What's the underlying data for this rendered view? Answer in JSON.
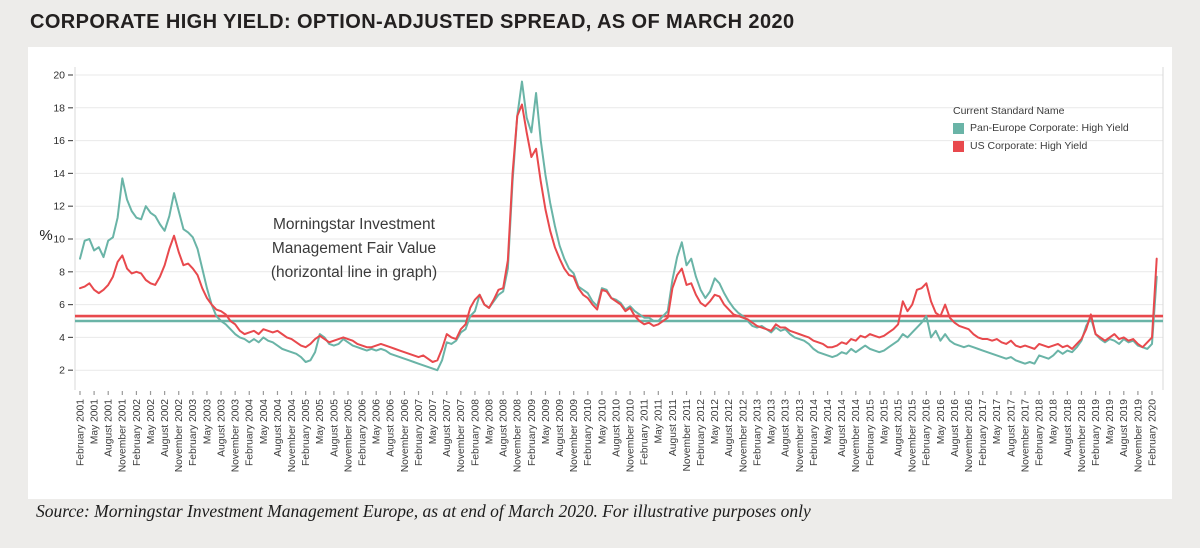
{
  "page": {
    "title": "CORPORATE HIGH YIELD: OPTION-ADJUSTED SPREAD, AS OF MARCH 2020",
    "source": "Source: Morningstar Investment Management Europe, as at end of March 2020. For illustrative purposes only"
  },
  "chart": {
    "y_axis_label": "%",
    "annotation": {
      "line1": "Morningstar Investment",
      "line2": "Management Fair Value",
      "line3": "(horizontal line in graph)"
    },
    "legend": {
      "title": "Current Standard Name",
      "items": [
        {
          "label": "Pan-Europe Corporate: High Yield",
          "color": "#6ab4a7"
        },
        {
          "label": "US Corporate: High Yield",
          "color": "#e8494d"
        }
      ]
    }
  },
  "chart_data": {
    "type": "line",
    "title": "Corporate High Yield: Option-Adjusted Spread, as of March 2020",
    "ylabel": "%",
    "ylim": [
      0.8,
      20.5
    ],
    "y_ticks": [
      2,
      4,
      6,
      8,
      10,
      12,
      14,
      16,
      18,
      20
    ],
    "grid": "horizontal",
    "legend_position": "inside-top-right",
    "x_frequency": "monthly",
    "x_start": "2001-02",
    "x_end": "2020-03",
    "x_tick_every_months": 3,
    "x_tick_labels": [
      "February 2001",
      "May 2001",
      "August 2001",
      "November 2001",
      "February 2002",
      "May 2002",
      "August 2002",
      "November 2002",
      "February 2003",
      "May 2003",
      "August 2003",
      "November 2003",
      "February 2004",
      "May 2004",
      "August 2004",
      "November 2004",
      "February 2005",
      "May 2005",
      "August 2005",
      "November 2005",
      "February 2006",
      "May 2006",
      "August 2006",
      "November 2006",
      "February 2007",
      "May 2007",
      "August 2007",
      "November 2007",
      "February 2008",
      "May 2008",
      "August 2008",
      "November 2008",
      "February 2009",
      "May 2009",
      "August 2009",
      "November 2009",
      "February 2010",
      "May 2010",
      "August 2010",
      "November 2010",
      "February 2011",
      "May 2011",
      "August 2011",
      "November 2011",
      "February 2012",
      "May 2012",
      "August 2012",
      "November 2012",
      "February 2013",
      "May 2013",
      "August 2013",
      "November 2013",
      "February 2014",
      "May 2014",
      "August 2014",
      "November 2014",
      "February 2015",
      "May 2015",
      "August 2015",
      "November 2015",
      "February 2016",
      "May 2016",
      "August 2016",
      "November 2016",
      "February 2017",
      "May 2017",
      "August 2017",
      "November 2017",
      "February 2018",
      "May 2018",
      "August 2018",
      "November 2018",
      "February 2019",
      "May 2019",
      "August 2019",
      "November 2019",
      "February 2020"
    ],
    "reference_lines": [
      {
        "name": "Morningstar Investment Management Fair Value (US Corporate: High Yield)",
        "value": 5.3,
        "color": "#e8494d"
      },
      {
        "name": "Morningstar Investment Management Fair Value (Pan-Europe Corporate: High Yield)",
        "value": 5.0,
        "color": "#6ab4a7"
      }
    ],
    "series": [
      {
        "name": "Pan-Europe Corporate: High Yield",
        "color": "#6ab4a7",
        "values": [
          8.8,
          9.9,
          10.0,
          9.3,
          9.5,
          8.9,
          9.9,
          10.1,
          11.3,
          13.7,
          12.4,
          11.7,
          11.3,
          11.2,
          12.0,
          11.6,
          11.4,
          10.9,
          10.5,
          11.4,
          12.8,
          11.7,
          10.6,
          10.4,
          10.1,
          9.4,
          8.2,
          7.0,
          6.0,
          5.3,
          5.0,
          4.8,
          4.5,
          4.2,
          4.0,
          3.9,
          3.7,
          3.9,
          3.7,
          4.0,
          3.8,
          3.7,
          3.5,
          3.3,
          3.2,
          3.1,
          3.0,
          2.8,
          2.5,
          2.6,
          3.1,
          4.2,
          4.0,
          3.6,
          3.5,
          3.6,
          3.9,
          3.7,
          3.5,
          3.4,
          3.3,
          3.2,
          3.3,
          3.2,
          3.3,
          3.2,
          3.0,
          2.9,
          2.8,
          2.7,
          2.6,
          2.5,
          2.4,
          2.3,
          2.2,
          2.1,
          2.0,
          2.6,
          3.7,
          3.6,
          3.8,
          4.3,
          4.5,
          5.3,
          5.6,
          6.6,
          6.0,
          5.8,
          6.2,
          6.6,
          6.8,
          8.2,
          13.5,
          17.5,
          19.6,
          17.4,
          16.5,
          18.9,
          16.0,
          13.9,
          12.2,
          10.8,
          9.6,
          8.8,
          8.2,
          7.9,
          7.1,
          6.9,
          6.7,
          6.2,
          5.9,
          7.0,
          6.9,
          6.4,
          6.3,
          6.1,
          5.7,
          5.9,
          5.6,
          5.4,
          5.2,
          5.2,
          5.0,
          5.0,
          5.3,
          5.6,
          7.5,
          8.9,
          9.8,
          8.4,
          8.8,
          7.7,
          6.9,
          6.4,
          6.8,
          7.6,
          7.3,
          6.7,
          6.2,
          5.8,
          5.5,
          5.3,
          5.0,
          4.7,
          4.6,
          4.7,
          4.5,
          4.3,
          4.6,
          4.4,
          4.5,
          4.2,
          4.0,
          3.9,
          3.8,
          3.6,
          3.3,
          3.1,
          3.0,
          2.9,
          2.8,
          2.9,
          3.1,
          3.0,
          3.3,
          3.1,
          3.3,
          3.5,
          3.3,
          3.2,
          3.1,
          3.2,
          3.4,
          3.6,
          3.8,
          4.2,
          4.0,
          4.3,
          4.6,
          4.9,
          5.3,
          4.0,
          4.4,
          3.8,
          4.2,
          3.8,
          3.6,
          3.5,
          3.4,
          3.5,
          3.4,
          3.3,
          3.2,
          3.1,
          3.0,
          2.9,
          2.8,
          2.7,
          2.8,
          2.6,
          2.5,
          2.4,
          2.5,
          2.4,
          2.9,
          2.8,
          2.7,
          2.9,
          3.2,
          3.0,
          3.2,
          3.1,
          3.4,
          3.8,
          4.7,
          5.2,
          4.2,
          3.9,
          3.7,
          3.9,
          3.8,
          3.6,
          3.9,
          3.7,
          3.8,
          3.5,
          3.4,
          3.3,
          3.6,
          7.7
        ]
      },
      {
        "name": "US Corporate: High Yield",
        "color": "#e8494d",
        "values": [
          7.0,
          7.1,
          7.3,
          6.9,
          6.7,
          6.9,
          7.2,
          7.7,
          8.6,
          9.0,
          8.2,
          7.9,
          8.0,
          7.9,
          7.5,
          7.3,
          7.2,
          7.7,
          8.4,
          9.4,
          10.2,
          9.2,
          8.4,
          8.5,
          8.2,
          7.8,
          7.0,
          6.4,
          6.0,
          5.7,
          5.6,
          5.4,
          5.0,
          4.8,
          4.4,
          4.2,
          4.3,
          4.4,
          4.2,
          4.5,
          4.4,
          4.3,
          4.4,
          4.2,
          4.0,
          3.9,
          3.7,
          3.5,
          3.4,
          3.6,
          3.9,
          4.1,
          3.9,
          3.7,
          3.8,
          3.9,
          4.0,
          3.9,
          3.8,
          3.6,
          3.5,
          3.4,
          3.4,
          3.5,
          3.6,
          3.5,
          3.4,
          3.3,
          3.2,
          3.1,
          3.0,
          2.9,
          2.8,
          2.9,
          2.7,
          2.5,
          2.6,
          3.3,
          4.2,
          4.0,
          3.9,
          4.5,
          4.8,
          5.8,
          6.3,
          6.6,
          6.0,
          5.8,
          6.3,
          6.9,
          7.0,
          8.7,
          14.0,
          17.5,
          18.2,
          16.5,
          15.0,
          15.5,
          13.5,
          11.8,
          10.5,
          9.5,
          8.8,
          8.2,
          7.8,
          7.7,
          7.0,
          6.6,
          6.4,
          6.0,
          5.7,
          6.9,
          6.8,
          6.4,
          6.2,
          6.0,
          5.6,
          5.8,
          5.3,
          5.0,
          4.8,
          4.9,
          4.7,
          4.8,
          5.0,
          5.2,
          7.0,
          7.8,
          8.2,
          7.2,
          7.3,
          6.6,
          6.1,
          5.9,
          6.2,
          6.6,
          6.5,
          6.0,
          5.7,
          5.4,
          5.3,
          5.2,
          5.1,
          4.9,
          4.7,
          4.6,
          4.5,
          4.4,
          4.8,
          4.6,
          4.6,
          4.4,
          4.3,
          4.2,
          4.1,
          4.0,
          3.8,
          3.7,
          3.6,
          3.4,
          3.4,
          3.5,
          3.7,
          3.6,
          3.9,
          3.8,
          4.1,
          4.0,
          4.2,
          4.1,
          4.0,
          4.1,
          4.3,
          4.5,
          4.8,
          6.2,
          5.6,
          6.0,
          6.9,
          7.0,
          7.3,
          6.2,
          5.5,
          5.3,
          6.0,
          5.2,
          4.9,
          4.7,
          4.6,
          4.5,
          4.2,
          4.0,
          3.9,
          3.9,
          3.8,
          3.9,
          3.7,
          3.6,
          3.8,
          3.5,
          3.4,
          3.5,
          3.4,
          3.3,
          3.6,
          3.5,
          3.4,
          3.5,
          3.6,
          3.4,
          3.5,
          3.3,
          3.6,
          3.9,
          4.5,
          5.4,
          4.2,
          4.0,
          3.8,
          4.0,
          4.2,
          3.9,
          4.0,
          3.8,
          3.9,
          3.6,
          3.4,
          3.7,
          4.0,
          8.8
        ]
      }
    ]
  }
}
